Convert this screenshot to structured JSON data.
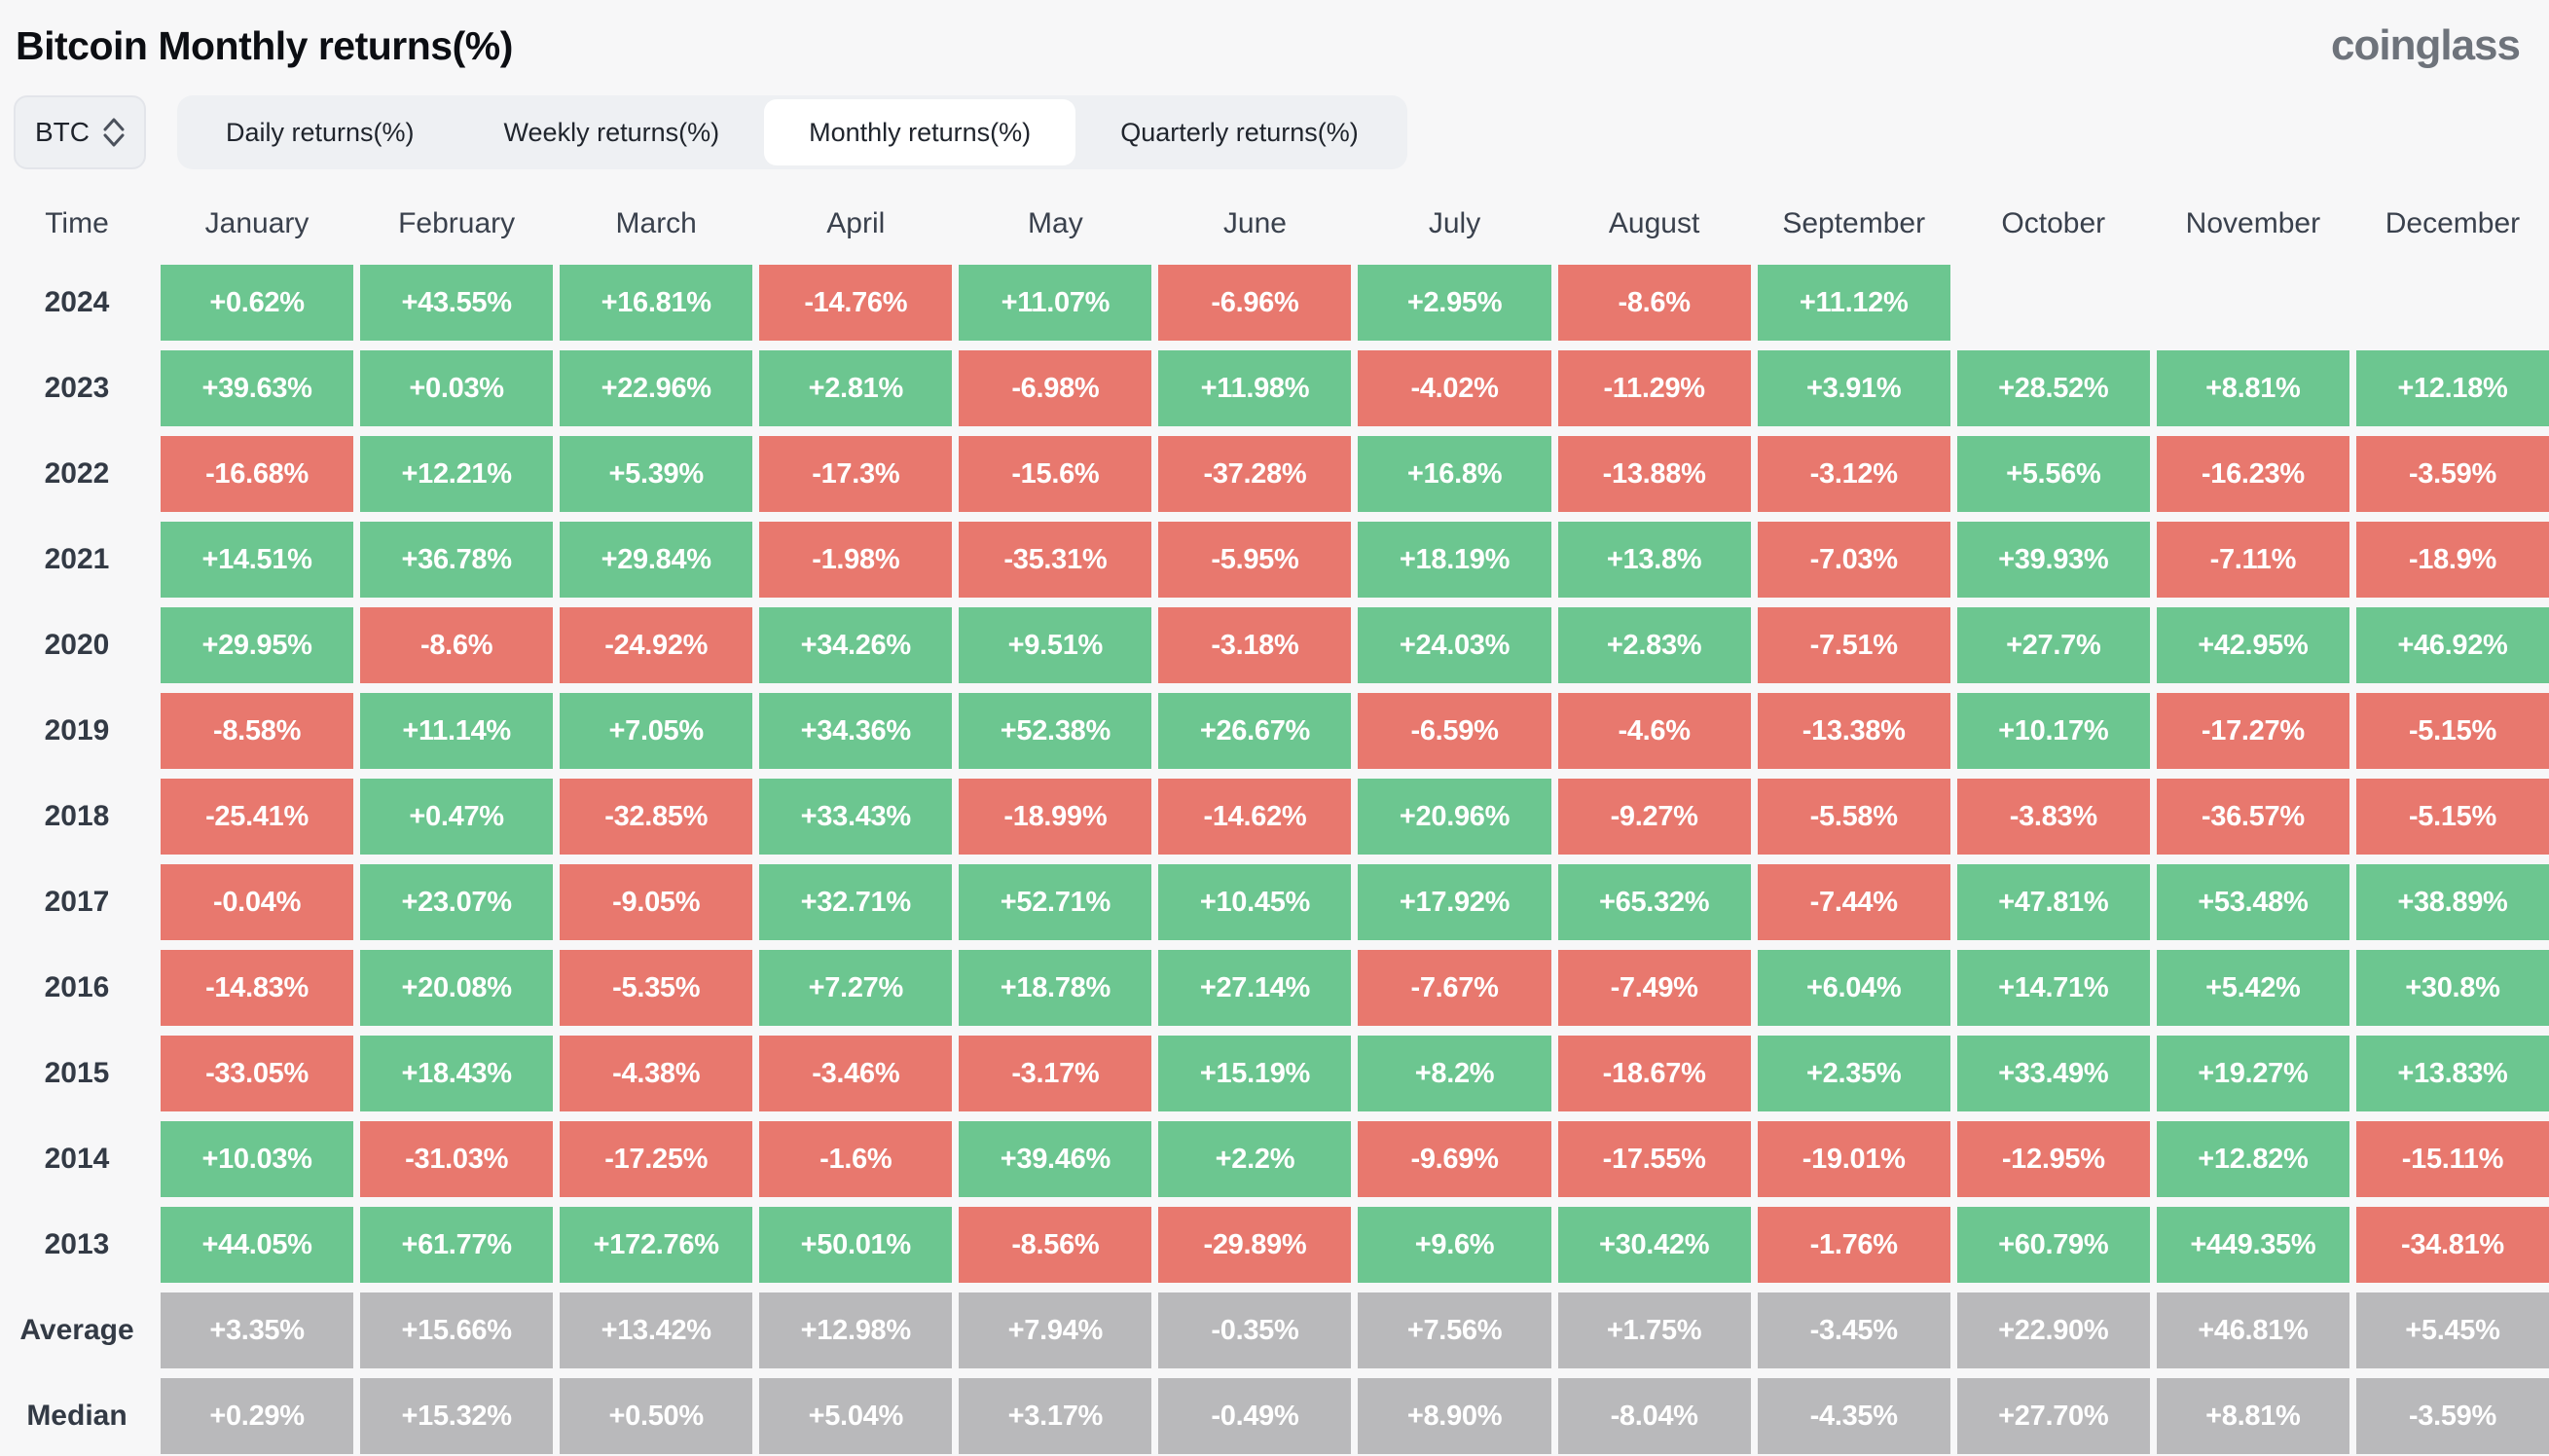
{
  "header": {
    "title": "Bitcoin Monthly returns(%)",
    "logo": "coinglass"
  },
  "controls": {
    "coin_selector": {
      "value": "BTC",
      "icon": "updown-chevron-icon"
    },
    "tabs": [
      {
        "label": "Daily returns(%)",
        "active": false
      },
      {
        "label": "Weekly returns(%)",
        "active": false
      },
      {
        "label": "Monthly returns(%)",
        "active": true
      },
      {
        "label": "Quarterly returns(%)",
        "active": false
      }
    ]
  },
  "colors": {
    "positive": "#6cc690",
    "negative": "#e8786e",
    "summary": "#b9b9bb",
    "background": "#f7f7f8",
    "text_dark": "#333a45",
    "cell_text": "#ffffff"
  },
  "chart_data": {
    "type": "heatmap",
    "title": "Bitcoin Monthly returns(%)",
    "unit": "%",
    "row_header": "Time",
    "columns": [
      "January",
      "February",
      "March",
      "April",
      "May",
      "June",
      "July",
      "August",
      "September",
      "October",
      "November",
      "December"
    ],
    "rows": [
      {
        "label": "2024",
        "kind": "year",
        "values": [
          "+0.62%",
          "+43.55%",
          "+16.81%",
          "-14.76%",
          "+11.07%",
          "-6.96%",
          "+2.95%",
          "-8.6%",
          "+11.12%",
          null,
          null,
          null
        ]
      },
      {
        "label": "2023",
        "kind": "year",
        "values": [
          "+39.63%",
          "+0.03%",
          "+22.96%",
          "+2.81%",
          "-6.98%",
          "+11.98%",
          "-4.02%",
          "-11.29%",
          "+3.91%",
          "+28.52%",
          "+8.81%",
          "+12.18%"
        ]
      },
      {
        "label": "2022",
        "kind": "year",
        "values": [
          "-16.68%",
          "+12.21%",
          "+5.39%",
          "-17.3%",
          "-15.6%",
          "-37.28%",
          "+16.8%",
          "-13.88%",
          "-3.12%",
          "+5.56%",
          "-16.23%",
          "-3.59%"
        ]
      },
      {
        "label": "2021",
        "kind": "year",
        "values": [
          "+14.51%",
          "+36.78%",
          "+29.84%",
          "-1.98%",
          "-35.31%",
          "-5.95%",
          "+18.19%",
          "+13.8%",
          "-7.03%",
          "+39.93%",
          "-7.11%",
          "-18.9%"
        ]
      },
      {
        "label": "2020",
        "kind": "year",
        "values": [
          "+29.95%",
          "-8.6%",
          "-24.92%",
          "+34.26%",
          "+9.51%",
          "-3.18%",
          "+24.03%",
          "+2.83%",
          "-7.51%",
          "+27.7%",
          "+42.95%",
          "+46.92%"
        ]
      },
      {
        "label": "2019",
        "kind": "year",
        "values": [
          "-8.58%",
          "+11.14%",
          "+7.05%",
          "+34.36%",
          "+52.38%",
          "+26.67%",
          "-6.59%",
          "-4.6%",
          "-13.38%",
          "+10.17%",
          "-17.27%",
          "-5.15%"
        ]
      },
      {
        "label": "2018",
        "kind": "year",
        "values": [
          "-25.41%",
          "+0.47%",
          "-32.85%",
          "+33.43%",
          "-18.99%",
          "-14.62%",
          "+20.96%",
          "-9.27%",
          "-5.58%",
          "-3.83%",
          "-36.57%",
          "-5.15%"
        ]
      },
      {
        "label": "2017",
        "kind": "year",
        "values": [
          "-0.04%",
          "+23.07%",
          "-9.05%",
          "+32.71%",
          "+52.71%",
          "+10.45%",
          "+17.92%",
          "+65.32%",
          "-7.44%",
          "+47.81%",
          "+53.48%",
          "+38.89%"
        ]
      },
      {
        "label": "2016",
        "kind": "year",
        "values": [
          "-14.83%",
          "+20.08%",
          "-5.35%",
          "+7.27%",
          "+18.78%",
          "+27.14%",
          "-7.67%",
          "-7.49%",
          "+6.04%",
          "+14.71%",
          "+5.42%",
          "+30.8%"
        ]
      },
      {
        "label": "2015",
        "kind": "year",
        "values": [
          "-33.05%",
          "+18.43%",
          "-4.38%",
          "-3.46%",
          "-3.17%",
          "+15.19%",
          "+8.2%",
          "-18.67%",
          "+2.35%",
          "+33.49%",
          "+19.27%",
          "+13.83%"
        ]
      },
      {
        "label": "2014",
        "kind": "year",
        "values": [
          "+10.03%",
          "-31.03%",
          "-17.25%",
          "-1.6%",
          "+39.46%",
          "+2.2%",
          "-9.69%",
          "-17.55%",
          "-19.01%",
          "-12.95%",
          "+12.82%",
          "-15.11%"
        ]
      },
      {
        "label": "2013",
        "kind": "year",
        "values": [
          "+44.05%",
          "+61.77%",
          "+172.76%",
          "+50.01%",
          "-8.56%",
          "-29.89%",
          "+9.6%",
          "+30.42%",
          "-1.76%",
          "+60.79%",
          "+449.35%",
          "-34.81%"
        ]
      },
      {
        "label": "Average",
        "kind": "summary",
        "values": [
          "+3.35%",
          "+15.66%",
          "+13.42%",
          "+12.98%",
          "+7.94%",
          "-0.35%",
          "+7.56%",
          "+1.75%",
          "-3.45%",
          "+22.90%",
          "+46.81%",
          "+5.45%"
        ]
      },
      {
        "label": "Median",
        "kind": "summary",
        "values": [
          "+0.29%",
          "+15.32%",
          "+0.50%",
          "+5.04%",
          "+3.17%",
          "-0.49%",
          "+8.90%",
          "-8.04%",
          "-4.35%",
          "+27.70%",
          "+8.81%",
          "-3.59%"
        ]
      }
    ]
  }
}
